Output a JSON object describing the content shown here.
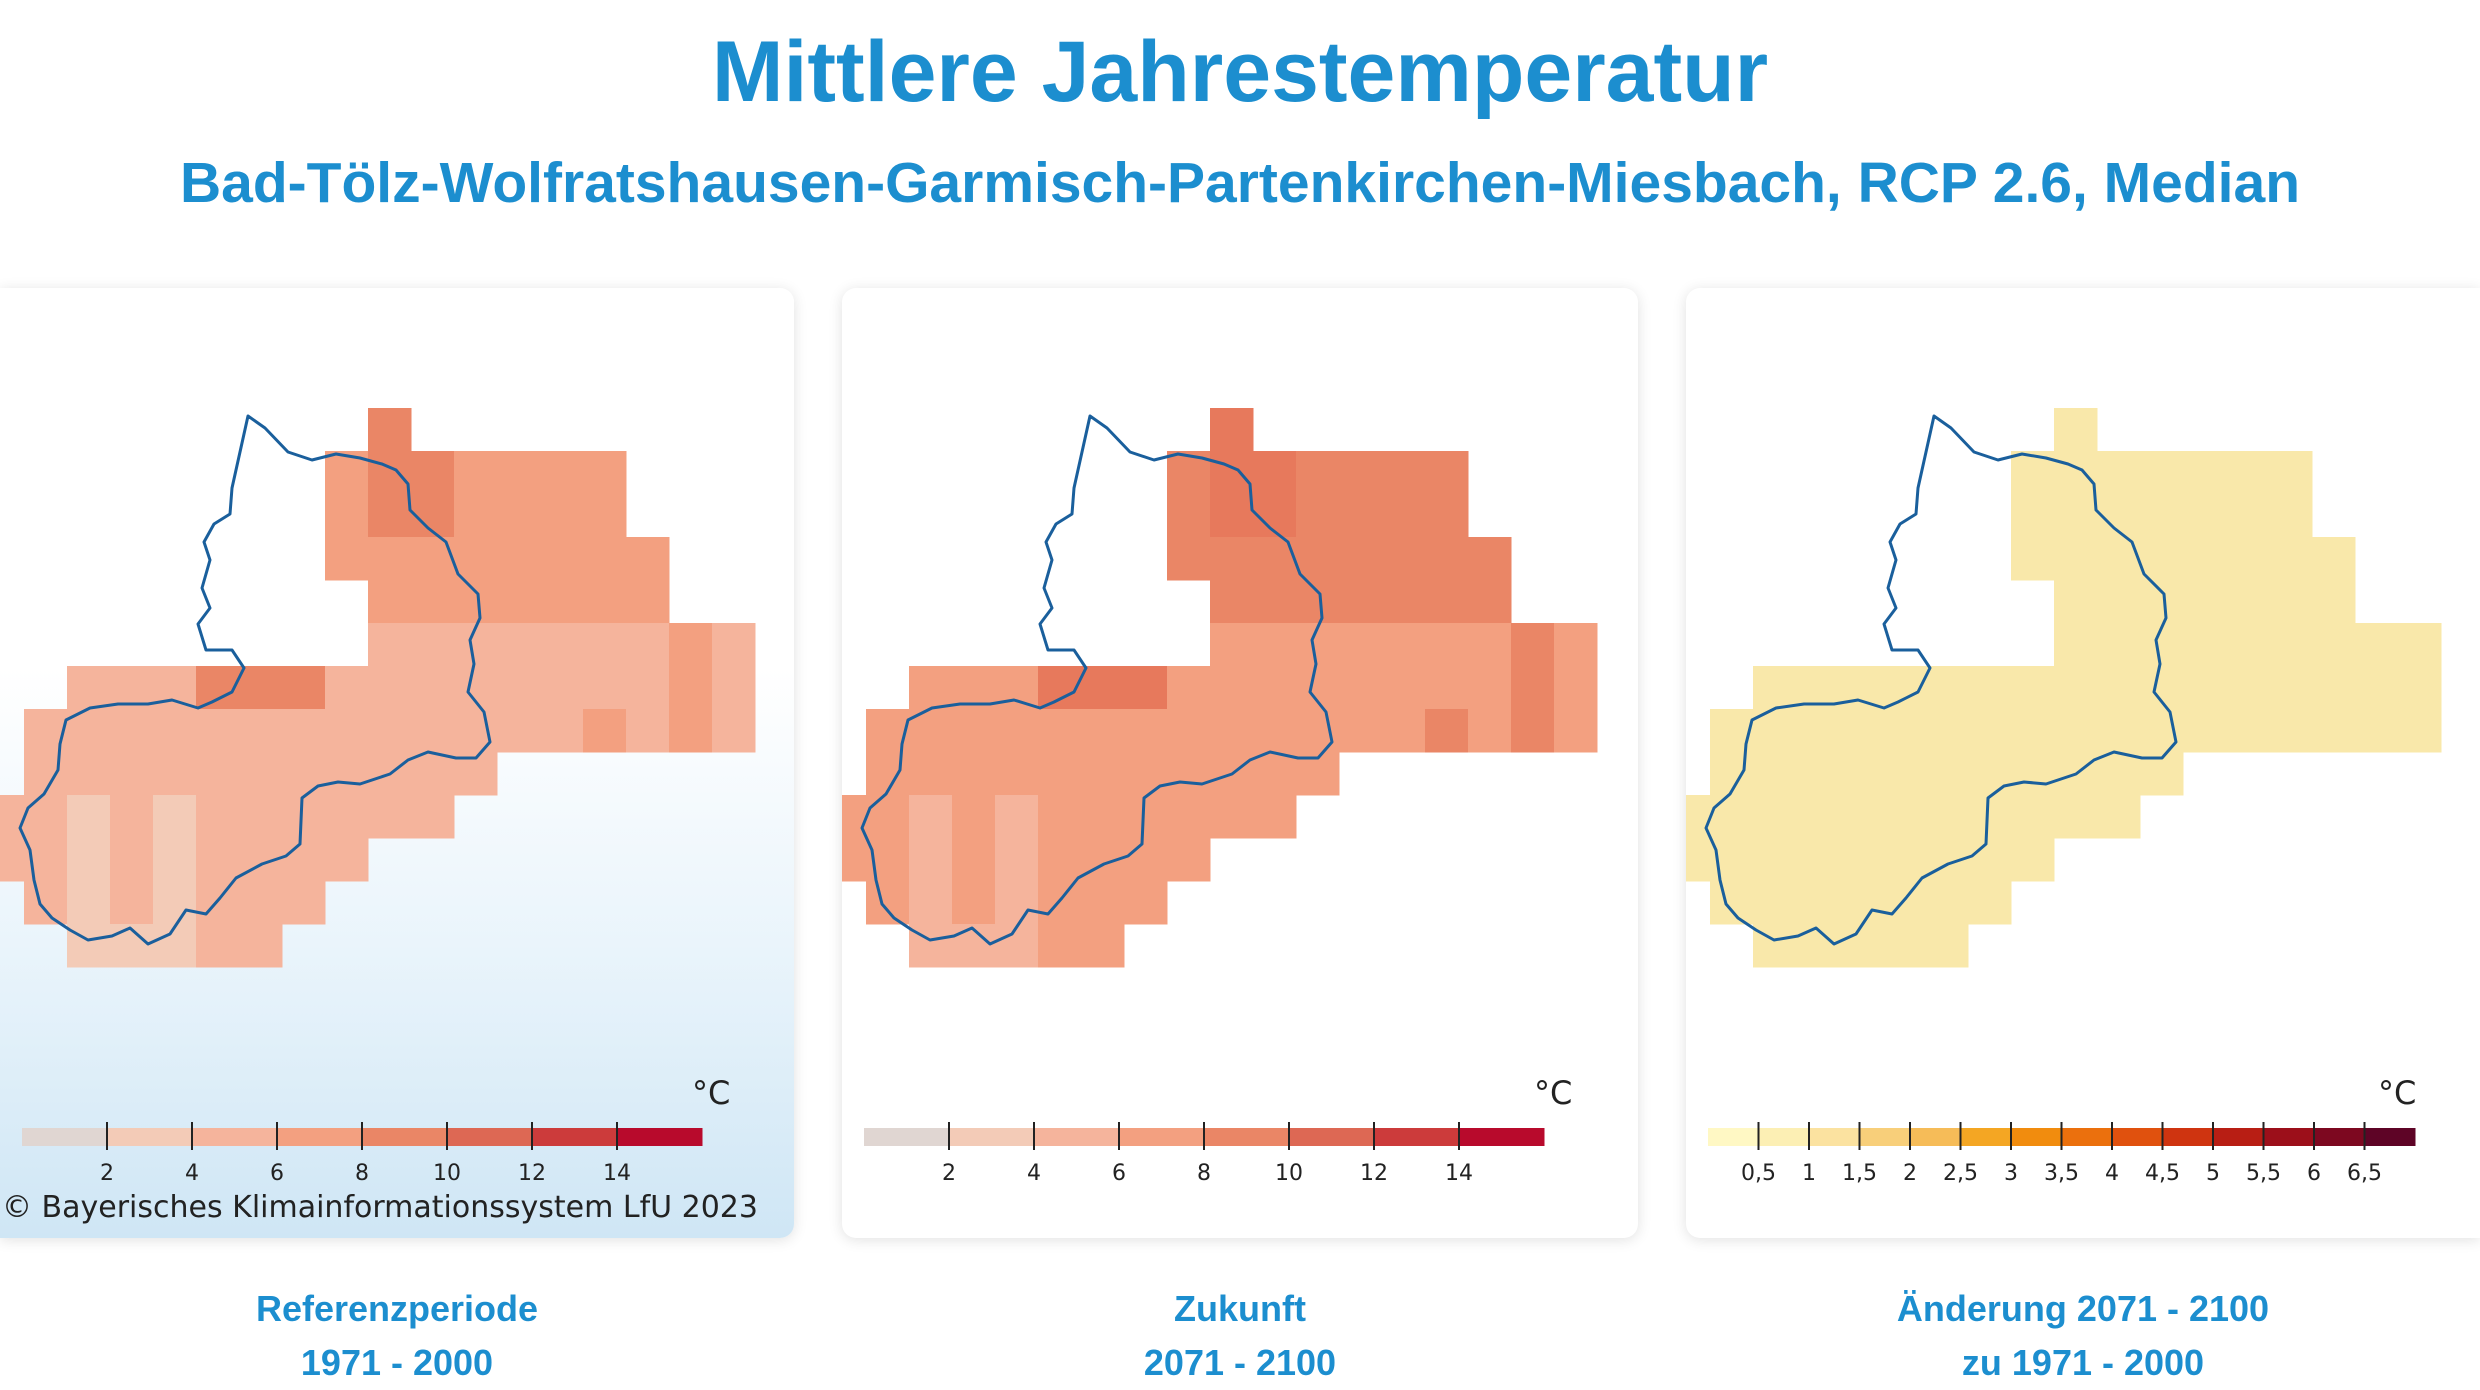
{
  "title": "Mittlere Jahrestemperatur",
  "subtitle": "Bad-Tölz-Wolfratshausen-Garmisch-Partenkirchen-Miesbach, RCP 2.6, Median",
  "copyright": "© Bayerisches Klimainformationssystem LfU 2023",
  "panels": [
    {
      "caption_line1": "Referenzperiode",
      "caption_line2": "1971 - 2000",
      "unit": "°C",
      "legend_ticks": [
        "2",
        "4",
        "6",
        "8",
        "10",
        "12",
        "14"
      ],
      "legend_colors": [
        "#e0d6d2",
        "#f3cbb7",
        "#f5b49c",
        "#f3a080",
        "#ea8666",
        "#dd6854",
        "#cc3b3b",
        "#b80a2c"
      ]
    },
    {
      "caption_line1": "Zukunft",
      "caption_line2": "2071 - 2100",
      "unit": "°C",
      "legend_ticks": [
        "2",
        "4",
        "6",
        "8",
        "10",
        "12",
        "14"
      ],
      "legend_colors": [
        "#e0d6d2",
        "#f3cbb7",
        "#f5b49c",
        "#f3a080",
        "#ea8666",
        "#dd6854",
        "#cc3b3b",
        "#b80a2c"
      ]
    },
    {
      "caption_line1": "Änderung 2071 - 2100",
      "caption_line2": "zu 1971 - 2000",
      "unit": "°C",
      "legend_ticks": [
        "0,5",
        "1",
        "1,5",
        "2",
        "2,5",
        "3",
        "3,5",
        "4",
        "4,5",
        "5",
        "5,5",
        "6",
        "6,5"
      ],
      "legend_colors": [
        "#fff8c4",
        "#fcefb4",
        "#fbe2a0",
        "#f8cf7a",
        "#f6bc58",
        "#f4a623",
        "#f18c0e",
        "#eb700d",
        "#e0510e",
        "#cf3410",
        "#b81e14",
        "#9c0f1a",
        "#7d0820",
        "#5e0426"
      ]
    }
  ],
  "colors": {
    "accent": "#1c8ecf",
    "outline": "#1a5f9c",
    "change_fill": "#f9e8aa"
  }
}
